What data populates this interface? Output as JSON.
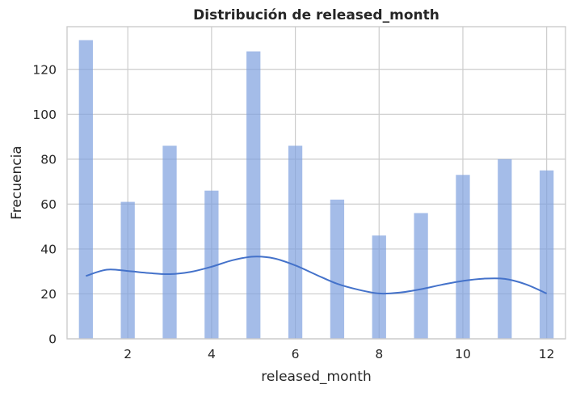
{
  "chart_data": {
    "type": "bar",
    "title": "Distribución de released_month",
    "xlabel": "released_month",
    "ylabel": "Frecuencia",
    "xlim": [
      0.55,
      12.45
    ],
    "ylim": [
      0,
      139
    ],
    "xticks": [
      2,
      4,
      6,
      8,
      10,
      12
    ],
    "yticks": [
      0,
      20,
      40,
      60,
      80,
      100,
      120
    ],
    "grid": true,
    "bar_width": 0.3333,
    "x": [
      1,
      2,
      3,
      4,
      5,
      6,
      7,
      8,
      9,
      10,
      11,
      12
    ],
    "values": [
      133,
      61,
      86,
      66,
      128,
      86,
      62,
      46,
      56,
      73,
      80,
      75
    ],
    "kde": {
      "x": [
        1.0,
        1.5,
        2.0,
        2.5,
        3.0,
        3.5,
        4.0,
        4.5,
        5.0,
        5.5,
        6.0,
        6.5,
        7.0,
        7.5,
        8.0,
        8.5,
        9.0,
        9.5,
        10.0,
        10.5,
        11.0,
        11.5,
        12.0
      ],
      "y": [
        28,
        30.8,
        30.2,
        29.3,
        28.8,
        29.8,
        32.1,
        35.0,
        36.6,
        35.8,
        32.7,
        28.5,
        24.5,
        21.9,
        20.2,
        20.6,
        22.1,
        24.1,
        25.8,
        26.8,
        26.7,
        24.3,
        20.2
      ]
    },
    "colors": {
      "bar": "#7da0de",
      "kde": "#4472ca"
    }
  }
}
